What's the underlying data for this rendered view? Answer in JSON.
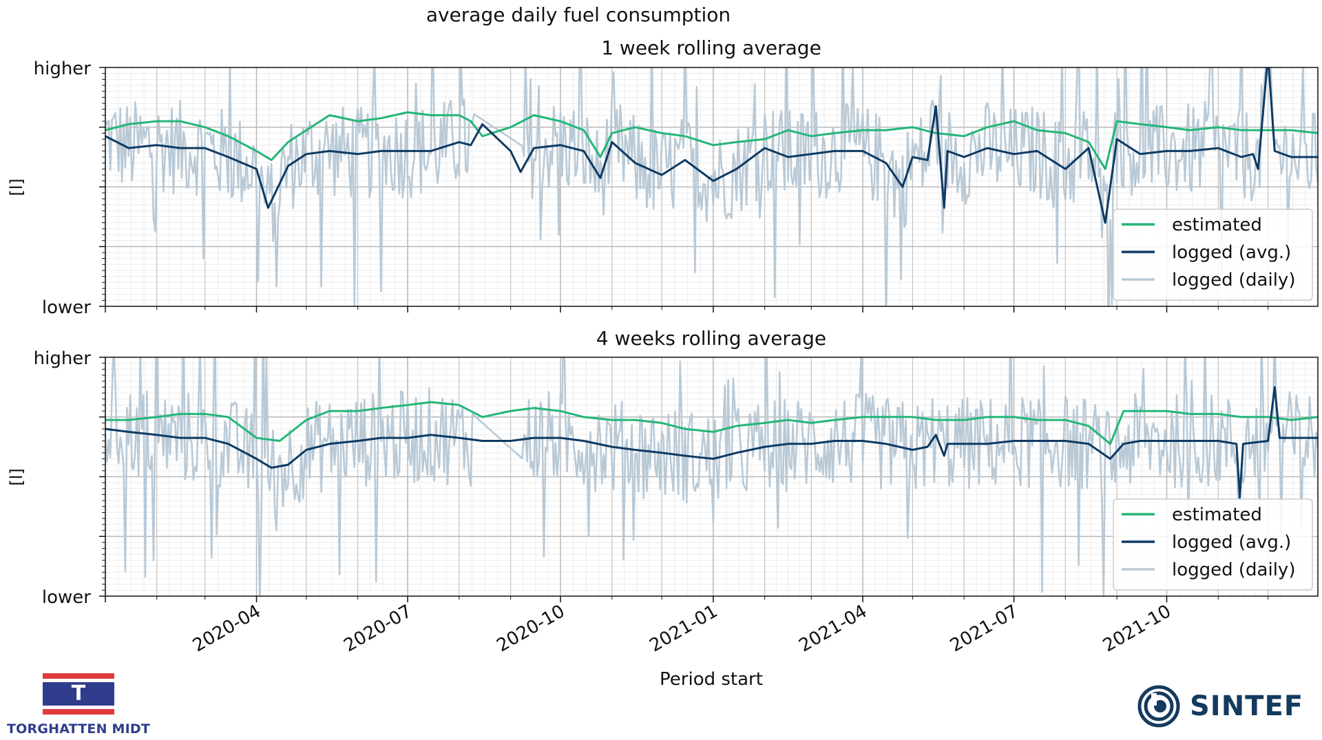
{
  "title": "average daily fuel consumption",
  "xlabel": "Period start",
  "ylabel": "[l]",
  "ytick_labels": {
    "top": "higher",
    "bottom": "lower"
  },
  "x_tick_labels": [
    "2020-04",
    "2020-07",
    "2020-10",
    "2021-01",
    "2021-04",
    "2021-07",
    "2021-10"
  ],
  "colors": {
    "estimated": "#23b677",
    "logged_avg": "#0d3a63",
    "logged_daily": "#b9c9d6",
    "grid": "#b8b8b8",
    "minor_grid": "#ececec"
  },
  "logos": {
    "left_text": "TORGHATTEN MIDT",
    "left_mark": "T",
    "right_text": "SINTEF"
  },
  "chart_data": [
    {
      "type": "line",
      "title": "1 week rolling average",
      "xlim": [
        "2020-01-01",
        "2021-12-31"
      ],
      "ylim": [
        0,
        4
      ],
      "y_axis_text_only": true,
      "legend_position": "lower-right",
      "series": [
        {
          "name": "estimated",
          "x": [
            "2020-01-01",
            "2020-01-15",
            "2020-02-01",
            "2020-02-15",
            "2020-03-01",
            "2020-03-15",
            "2020-04-01",
            "2020-04-10",
            "2020-04-20",
            "2020-05-01",
            "2020-05-15",
            "2020-06-01",
            "2020-06-15",
            "2020-07-01",
            "2020-07-15",
            "2020-08-01",
            "2020-08-08",
            "2020-08-15",
            "2020-09-01",
            "2020-09-15",
            "2020-10-01",
            "2020-10-15",
            "2020-10-25",
            "2020-11-01",
            "2020-11-15",
            "2020-12-01",
            "2020-12-15",
            "2021-01-01",
            "2021-01-15",
            "2021-02-01",
            "2021-02-15",
            "2021-03-01",
            "2021-03-15",
            "2021-04-01",
            "2021-04-15",
            "2021-05-01",
            "2021-05-15",
            "2021-06-01",
            "2021-06-15",
            "2021-07-01",
            "2021-07-15",
            "2021-08-01",
            "2021-08-15",
            "2021-08-25",
            "2021-09-01",
            "2021-09-15",
            "2021-10-01",
            "2021-10-15",
            "2021-11-01",
            "2021-11-15",
            "2021-12-01",
            "2021-12-15",
            "2021-12-31"
          ],
          "values": [
            2.95,
            3.05,
            3.1,
            3.1,
            3.0,
            2.85,
            2.6,
            2.45,
            2.75,
            2.95,
            3.2,
            3.1,
            3.15,
            3.25,
            3.2,
            3.2,
            3.1,
            2.85,
            3.0,
            3.2,
            3.1,
            2.95,
            2.5,
            2.9,
            3.0,
            2.9,
            2.85,
            2.7,
            2.75,
            2.8,
            2.95,
            2.85,
            2.9,
            2.95,
            2.95,
            3.0,
            2.9,
            2.85,
            3.0,
            3.1,
            2.95,
            2.9,
            2.75,
            2.3,
            3.1,
            3.05,
            3.0,
            2.95,
            3.0,
            2.95,
            2.95,
            2.95,
            2.9
          ]
        },
        {
          "name": "logged (avg.)",
          "x": [
            "2020-01-01",
            "2020-01-15",
            "2020-02-01",
            "2020-02-15",
            "2020-03-01",
            "2020-03-15",
            "2020-04-01",
            "2020-04-08",
            "2020-04-20",
            "2020-05-01",
            "2020-05-15",
            "2020-06-01",
            "2020-06-15",
            "2020-07-01",
            "2020-07-15",
            "2020-08-01",
            "2020-08-08",
            "2020-08-15",
            "2020-09-01",
            "2020-09-07",
            "2020-09-15",
            "2020-10-01",
            "2020-10-15",
            "2020-10-25",
            "2020-11-01",
            "2020-11-15",
            "2020-12-01",
            "2020-12-15",
            "2021-01-01",
            "2021-01-15",
            "2021-02-01",
            "2021-02-15",
            "2021-03-01",
            "2021-03-15",
            "2021-04-01",
            "2021-04-15",
            "2021-04-25",
            "2021-05-01",
            "2021-05-10",
            "2021-05-15",
            "2021-05-20",
            "2021-05-22",
            "2021-06-01",
            "2021-06-15",
            "2021-07-01",
            "2021-07-15",
            "2021-08-01",
            "2021-08-15",
            "2021-08-25",
            "2021-09-01",
            "2021-09-15",
            "2021-10-01",
            "2021-10-15",
            "2021-11-01",
            "2021-11-15",
            "2021-11-22",
            "2021-11-25",
            "2021-12-01",
            "2021-12-05",
            "2021-12-15",
            "2021-12-31"
          ],
          "values": [
            2.85,
            2.65,
            2.7,
            2.65,
            2.65,
            2.5,
            2.3,
            1.65,
            2.35,
            2.55,
            2.6,
            2.55,
            2.6,
            2.6,
            2.6,
            2.75,
            2.7,
            3.05,
            2.6,
            2.25,
            2.65,
            2.7,
            2.6,
            2.15,
            2.75,
            2.4,
            2.2,
            2.45,
            2.1,
            2.3,
            2.65,
            2.5,
            2.55,
            2.6,
            2.6,
            2.4,
            2.0,
            2.5,
            2.45,
            3.35,
            1.65,
            2.6,
            2.5,
            2.65,
            2.55,
            2.6,
            2.3,
            2.65,
            1.4,
            2.8,
            2.55,
            2.6,
            2.6,
            2.65,
            2.5,
            2.55,
            2.3,
            4.2,
            2.6,
            2.5,
            2.5
          ]
        },
        {
          "name": "logged (daily)",
          "x": [
            "2020-01-01",
            "2021-12-31"
          ],
          "values": [
            2.6,
            2.6
          ],
          "note_style": "noisy daily values oscillating roughly between 0.5 and 4"
        }
      ]
    },
    {
      "type": "line",
      "title": "4 weeks rolling average",
      "xlim": [
        "2020-01-01",
        "2021-12-31"
      ],
      "ylim": [
        0,
        4
      ],
      "y_axis_text_only": true,
      "legend_position": "lower-right",
      "series": [
        {
          "name": "estimated",
          "x": [
            "2020-01-01",
            "2020-01-15",
            "2020-02-01",
            "2020-02-15",
            "2020-03-01",
            "2020-03-15",
            "2020-04-01",
            "2020-04-15",
            "2020-05-01",
            "2020-05-15",
            "2020-06-01",
            "2020-06-15",
            "2020-07-01",
            "2020-07-15",
            "2020-08-01",
            "2020-08-15",
            "2020-09-01",
            "2020-09-15",
            "2020-10-01",
            "2020-10-15",
            "2020-11-01",
            "2020-11-15",
            "2020-12-01",
            "2020-12-15",
            "2021-01-01",
            "2021-01-15",
            "2021-02-01",
            "2021-02-15",
            "2021-03-01",
            "2021-03-15",
            "2021-04-01",
            "2021-04-15",
            "2021-05-01",
            "2021-05-15",
            "2021-06-01",
            "2021-06-15",
            "2021-07-01",
            "2021-07-15",
            "2021-08-01",
            "2021-08-15",
            "2021-08-28",
            "2021-09-05",
            "2021-09-15",
            "2021-10-01",
            "2021-10-15",
            "2021-11-01",
            "2021-11-15",
            "2021-12-01",
            "2021-12-15",
            "2021-12-31"
          ],
          "values": [
            2.95,
            2.95,
            3.0,
            3.05,
            3.05,
            3.0,
            2.65,
            2.6,
            2.95,
            3.1,
            3.1,
            3.15,
            3.2,
            3.25,
            3.2,
            3.0,
            3.1,
            3.15,
            3.1,
            3.0,
            2.95,
            2.95,
            2.9,
            2.8,
            2.75,
            2.85,
            2.9,
            2.95,
            2.9,
            2.95,
            3.0,
            3.0,
            3.0,
            2.95,
            2.95,
            3.0,
            3.0,
            2.95,
            2.95,
            2.85,
            2.55,
            3.1,
            3.1,
            3.1,
            3.05,
            3.05,
            3.0,
            3.0,
            2.95,
            3.0
          ]
        },
        {
          "name": "logged (avg.)",
          "x": [
            "2020-01-01",
            "2020-01-15",
            "2020-02-01",
            "2020-02-15",
            "2020-03-01",
            "2020-03-15",
            "2020-04-01",
            "2020-04-10",
            "2020-04-20",
            "2020-05-01",
            "2020-05-15",
            "2020-06-01",
            "2020-06-15",
            "2020-07-01",
            "2020-07-15",
            "2020-08-01",
            "2020-08-15",
            "2020-09-01",
            "2020-09-15",
            "2020-10-01",
            "2020-10-15",
            "2020-11-01",
            "2020-11-15",
            "2020-12-01",
            "2020-12-15",
            "2021-01-01",
            "2021-01-15",
            "2021-02-01",
            "2021-02-15",
            "2021-03-01",
            "2021-03-15",
            "2021-04-01",
            "2021-04-15",
            "2021-05-01",
            "2021-05-10",
            "2021-05-15",
            "2021-05-20",
            "2021-05-22",
            "2021-06-01",
            "2021-06-15",
            "2021-07-01",
            "2021-07-15",
            "2021-08-01",
            "2021-08-15",
            "2021-08-28",
            "2021-09-05",
            "2021-09-15",
            "2021-10-01",
            "2021-10-15",
            "2021-11-01",
            "2021-11-12",
            "2021-11-14",
            "2021-11-16",
            "2021-12-01",
            "2021-12-05",
            "2021-12-08",
            "2021-12-15",
            "2021-12-31"
          ],
          "values": [
            2.8,
            2.75,
            2.7,
            2.65,
            2.65,
            2.55,
            2.3,
            2.15,
            2.2,
            2.45,
            2.55,
            2.6,
            2.65,
            2.65,
            2.7,
            2.65,
            2.6,
            2.6,
            2.65,
            2.65,
            2.6,
            2.5,
            2.45,
            2.4,
            2.35,
            2.3,
            2.4,
            2.5,
            2.55,
            2.55,
            2.6,
            2.6,
            2.55,
            2.45,
            2.5,
            2.7,
            2.35,
            2.55,
            2.55,
            2.55,
            2.6,
            2.6,
            2.6,
            2.55,
            2.3,
            2.55,
            2.6,
            2.6,
            2.6,
            2.6,
            2.55,
            1.65,
            2.55,
            2.6,
            3.5,
            2.65,
            2.65,
            2.65
          ]
        },
        {
          "name": "logged (daily)",
          "x": [
            "2020-01-01",
            "2021-12-31"
          ],
          "values": [
            2.6,
            2.6
          ],
          "note_style": "noisy daily values oscillating roughly between 0.5 and 4"
        }
      ]
    }
  ]
}
